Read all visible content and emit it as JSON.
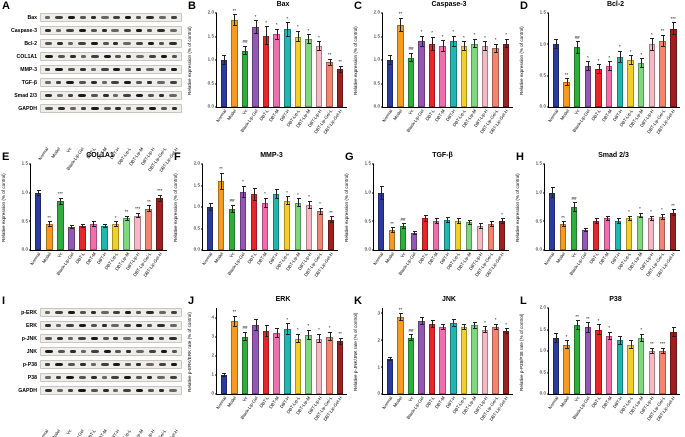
{
  "figure": {
    "bar_colors": [
      "#2b3a9f",
      "#f59b22",
      "#2eaf3c",
      "#9457b5",
      "#e8262a",
      "#ef6eae",
      "#21b6b0",
      "#f2d029",
      "#7ed87e",
      "#f5b8c4",
      "#f48472",
      "#9e1f1f"
    ],
    "background": "#ffffff"
  },
  "groups": [
    "Normal",
    "Model",
    "Vc",
    "Blank-Lip-Gel",
    "DBT-L",
    "DBT-M",
    "DBT-H",
    "DBT-Lip-L",
    "DBT-Lip-M",
    "DBT-Lip-H",
    "DBT-Lip-Gel-L",
    "DBT-Lip-Gel-H"
  ],
  "panels": {
    "A": {
      "letter": "A",
      "rows": [
        "Bax",
        "Caspase-3",
        "Bcl-2",
        "COL1A1",
        "MMP-3",
        "TGF-β",
        "Smad 2/3",
        "GAPDH"
      ]
    },
    "B": {
      "letter": "B"
    },
    "C": {
      "letter": "C"
    },
    "D": {
      "letter": "D"
    },
    "E": {
      "letter": "E"
    },
    "F": {
      "letter": "F"
    },
    "G": {
      "letter": "G"
    },
    "H": {
      "letter": "H"
    },
    "I": {
      "letter": "I",
      "rows": [
        "p-ERK",
        "ERK",
        "p-JNK",
        "JNK",
        "p-P38",
        "P38",
        "GAPDH"
      ]
    },
    "J": {
      "letter": "J"
    },
    "K": {
      "letter": "K"
    },
    "L": {
      "letter": "L"
    }
  },
  "chart_data": [
    {
      "type": "bar",
      "panel": "B",
      "title": "Bax",
      "ylabel": "Relative expression (% of control)",
      "ylim": [
        0,
        2.0
      ],
      "yticks": [
        "0.0",
        "0.5",
        "1.0",
        "1.5",
        "2.0"
      ],
      "categories": [
        "Normal",
        "Model",
        "Vc",
        "Blank-Lip-Gel",
        "DBT-L",
        "DBT-M",
        "DBT-H",
        "DBT-Lip-L",
        "DBT-Lip-M",
        "DBT-Lip-H",
        "DBT-Lip-Gel-L",
        "DBT-Lip-Gel-H"
      ],
      "values": [
        1.0,
        1.85,
        1.2,
        1.7,
        1.52,
        1.55,
        1.65,
        1.5,
        1.45,
        1.3,
        0.95,
        0.8
      ],
      "errors": [
        0.1,
        0.12,
        0.1,
        0.15,
        0.2,
        0.12,
        0.15,
        0.12,
        0.1,
        0.1,
        0.08,
        0.08
      ],
      "sig": [
        "",
        "**",
        "##",
        "*",
        "*",
        "*",
        "*",
        "*",
        "*",
        "*",
        "**",
        "**"
      ]
    },
    {
      "type": "bar",
      "panel": "C",
      "title": "Caspase-3",
      "ylabel": "Relative expression (% of control)",
      "ylim": [
        0,
        2.0
      ],
      "yticks": [
        "0.0",
        "0.5",
        "1.0",
        "1.5",
        "2.0"
      ],
      "categories": [
        "Normal",
        "Model",
        "Vc",
        "Blank-Lip-Gel",
        "DBT-L",
        "DBT-M",
        "DBT-H",
        "DBT-Lip-L",
        "DBT-Lip-M",
        "DBT-Lip-H",
        "DBT-Lip-Gel-L",
        "DBT-Lip-Gel-H"
      ],
      "values": [
        1.0,
        1.75,
        1.05,
        1.4,
        1.35,
        1.3,
        1.4,
        1.3,
        1.35,
        1.3,
        1.25,
        1.35
      ],
      "errors": [
        0.1,
        0.15,
        0.1,
        0.12,
        0.15,
        0.12,
        0.12,
        0.1,
        0.1,
        0.1,
        0.1,
        0.1
      ],
      "sig": [
        "",
        "**",
        "##",
        "*",
        "*",
        "*",
        "*",
        "*",
        "*",
        "*",
        "*",
        "*"
      ]
    },
    {
      "type": "bar",
      "panel": "D",
      "title": "Bcl-2",
      "ylabel": "Relative expression (% of control)",
      "ylim": [
        0,
        1.5
      ],
      "yticks": [
        "0.0",
        "0.5",
        "1.0",
        "1.5"
      ],
      "categories": [
        "Normal",
        "Model",
        "Vc",
        "Blank-Lip-Gel",
        "DBT-L",
        "DBT-M",
        "DBT-H",
        "DBT-Lip-L",
        "DBT-Lip-M",
        "DBT-Lip-H",
        "DBT-Lip-Gel-L",
        "DBT-Lip-Gel-H"
      ],
      "values": [
        1.0,
        0.4,
        0.95,
        0.65,
        0.6,
        0.65,
        0.8,
        0.75,
        0.7,
        1.0,
        1.05,
        1.25
      ],
      "errors": [
        0.08,
        0.06,
        0.1,
        0.08,
        0.08,
        0.08,
        0.1,
        0.08,
        0.08,
        0.1,
        0.1,
        0.1
      ],
      "sig": [
        "",
        "**",
        "##",
        "*",
        "*",
        "*",
        "*",
        "*",
        "*",
        "*",
        "**",
        "***"
      ]
    },
    {
      "type": "bar",
      "panel": "E",
      "title": "COL1A1",
      "ylabel": "Relative expression (% of control)",
      "ylim": [
        0,
        1.5
      ],
      "yticks": [
        "0.0",
        "0.5",
        "1.0",
        "1.5"
      ],
      "categories": [
        "Normal",
        "Model",
        "Vc",
        "Blank-Lip-Gel",
        "DBT-L",
        "DBT-M",
        "DBT-H",
        "DBT-Lip-L",
        "DBT-Lip-M",
        "DBT-Lip-H",
        "DBT-Lip-Gel-L",
        "DBT-Lip-Gel-H"
      ],
      "values": [
        1.0,
        0.45,
        0.85,
        0.4,
        0.42,
        0.45,
        0.42,
        0.45,
        0.55,
        0.6,
        0.72,
        0.9
      ],
      "errors": [
        0.05,
        0.05,
        0.06,
        0.04,
        0.04,
        0.05,
        0.04,
        0.05,
        0.05,
        0.05,
        0.06,
        0.06
      ],
      "sig": [
        "",
        "**",
        "***",
        "",
        "",
        "",
        "",
        "*",
        "**",
        "***",
        "**",
        "***"
      ]
    },
    {
      "type": "bar",
      "panel": "F",
      "title": "MMP-3",
      "ylabel": "Relative expression (% of control)",
      "ylim": [
        0,
        2.0
      ],
      "yticks": [
        "0.0",
        "0.5",
        "1.0",
        "1.5",
        "2.0"
      ],
      "categories": [
        "Normal",
        "Model",
        "Vc",
        "Blank-Lip-Gel",
        "DBT-L",
        "DBT-M",
        "DBT-H",
        "DBT-Lip-L",
        "DBT-Lip-M",
        "DBT-Lip-H",
        "DBT-Lip-Gel-L",
        "DBT-Lip-Gel-H"
      ],
      "values": [
        1.0,
        1.6,
        0.95,
        1.35,
        1.3,
        1.1,
        1.3,
        1.15,
        1.1,
        1.05,
        0.9,
        0.7
      ],
      "errors": [
        0.1,
        0.2,
        0.1,
        0.15,
        0.15,
        0.12,
        0.12,
        0.1,
        0.1,
        0.1,
        0.08,
        0.08
      ],
      "sig": [
        "",
        "**",
        "##",
        "*",
        "",
        "*",
        "",
        "*",
        "*",
        "*",
        "*",
        "**"
      ]
    },
    {
      "type": "bar",
      "panel": "G",
      "title": "TGF-β",
      "ylabel": "Relative expression (% of control)",
      "ylim": [
        0,
        1.5
      ],
      "yticks": [
        "0.0",
        "0.5",
        "1.0",
        "1.5"
      ],
      "categories": [
        "Normal",
        "Model",
        "Vc",
        "Blank-Lip-Gel",
        "DBT-L",
        "DBT-M",
        "DBT-H",
        "DBT-Lip-L",
        "DBT-Lip-M",
        "DBT-Lip-H",
        "DBT-Lip-Gel-L",
        "DBT-Lip-Gel-H"
      ],
      "values": [
        1.0,
        0.35,
        0.42,
        0.3,
        0.55,
        0.5,
        0.52,
        0.5,
        0.48,
        0.42,
        0.45,
        0.5
      ],
      "errors": [
        0.12,
        0.05,
        0.05,
        0.04,
        0.06,
        0.05,
        0.05,
        0.05,
        0.05,
        0.05,
        0.05,
        0.05
      ],
      "sig": [
        "",
        "**",
        "##",
        "",
        "",
        "",
        "",
        "",
        "",
        "",
        "",
        "*"
      ]
    },
    {
      "type": "bar",
      "panel": "H",
      "title": "Smad 2/3",
      "ylabel": "Relative expression (% of control)",
      "ylim": [
        0,
        1.5
      ],
      "yticks": [
        "0.0",
        "0.5",
        "1.0",
        "1.5"
      ],
      "categories": [
        "Normal",
        "Model",
        "Vc",
        "Blank-Lip-Gel",
        "DBT-L",
        "DBT-M",
        "DBT-H",
        "DBT-Lip-L",
        "DBT-Lip-M",
        "DBT-Lip-H",
        "DBT-Lip-Gel-L",
        "DBT-Lip-Gel-H"
      ],
      "values": [
        1.0,
        0.45,
        0.75,
        0.35,
        0.5,
        0.55,
        0.5,
        0.55,
        0.6,
        0.55,
        0.58,
        0.65
      ],
      "errors": [
        0.1,
        0.05,
        0.08,
        0.04,
        0.05,
        0.05,
        0.05,
        0.05,
        0.05,
        0.05,
        0.05,
        0.06
      ],
      "sig": [
        "",
        "**",
        "##",
        "",
        "",
        "",
        "",
        "*",
        "*",
        "*",
        "*",
        "**"
      ]
    },
    {
      "type": "bar",
      "panel": "J",
      "title": "ERK",
      "ylabel": "Relative p-ERK/ERK rate (% of control)",
      "ylim": [
        0,
        4.5
      ],
      "yticks": [
        "0",
        "1",
        "2",
        "3",
        "4"
      ],
      "categories": [
        "Normal",
        "Model",
        "Vc",
        "Blank-Lip-Gel",
        "DBT-L",
        "DBT-M",
        "DBT-H",
        "DBT-Lip-L",
        "DBT-Lip-M",
        "DBT-Lip-H",
        "DBT-Lip-Gel-L",
        "DBT-Lip-Gel-H"
      ],
      "values": [
        1.0,
        3.8,
        3.0,
        3.6,
        3.3,
        3.2,
        3.4,
        2.9,
        3.1,
        2.9,
        3.0,
        2.75
      ],
      "errors": [
        0.1,
        0.3,
        0.25,
        0.3,
        0.3,
        0.25,
        0.3,
        0.25,
        0.25,
        0.25,
        0.25,
        0.2
      ],
      "sig": [
        "",
        "**",
        "##",
        "",
        "",
        "",
        "*",
        "*",
        "*",
        "*",
        "*",
        "**"
      ]
    },
    {
      "type": "bar",
      "panel": "K",
      "title": "JNK",
      "ylabel": "Relative p-JNK/JNK rate (% of control)",
      "ylim": [
        0,
        3.2
      ],
      "yticks": [
        "0",
        "1",
        "2",
        "3"
      ],
      "categories": [
        "Normal",
        "Model",
        "Vc",
        "Blank-Lip-Gel",
        "DBT-L",
        "DBT-M",
        "DBT-H",
        "DBT-Lip-L",
        "DBT-Lip-M",
        "DBT-Lip-H",
        "DBT-Lip-Gel-L",
        "DBT-Lip-Gel-H"
      ],
      "values": [
        1.3,
        2.85,
        2.1,
        2.7,
        2.6,
        2.5,
        2.65,
        2.5,
        2.55,
        2.4,
        2.5,
        2.35
      ],
      "errors": [
        0.08,
        0.15,
        0.12,
        0.15,
        0.15,
        0.12,
        0.15,
        0.12,
        0.12,
        0.12,
        0.12,
        0.1
      ],
      "sig": [
        "",
        "**",
        "##",
        "",
        "",
        "",
        "",
        "",
        "",
        "*",
        "*",
        "*"
      ]
    },
    {
      "type": "bar",
      "panel": "L",
      "title": "P38",
      "ylabel": "Relative p-P38/P38 rate (% of control)",
      "ylim": [
        0,
        2.0
      ],
      "yticks": [
        "0.0",
        "0.5",
        "1.0",
        "1.5",
        "2.0"
      ],
      "categories": [
        "Normal",
        "Model",
        "Vc",
        "Blank-Lip-Gel",
        "DBT-L",
        "DBT-M",
        "DBT-H",
        "DBT-Lip-L",
        "DBT-Lip-M",
        "DBT-Lip-H",
        "DBT-Lip-Gel-L",
        "DBT-Lip-Gel-H"
      ],
      "values": [
        1.3,
        1.15,
        1.6,
        1.55,
        1.5,
        1.35,
        1.25,
        1.15,
        1.3,
        1.0,
        1.0,
        1.45
      ],
      "errors": [
        0.12,
        0.1,
        0.12,
        0.12,
        0.12,
        0.1,
        0.1,
        0.1,
        0.1,
        0.08,
        0.08,
        0.12
      ],
      "sig": [
        "",
        "*",
        "**",
        "**",
        "*",
        "*",
        "",
        "",
        "*",
        "**",
        "***",
        ""
      ]
    }
  ]
}
